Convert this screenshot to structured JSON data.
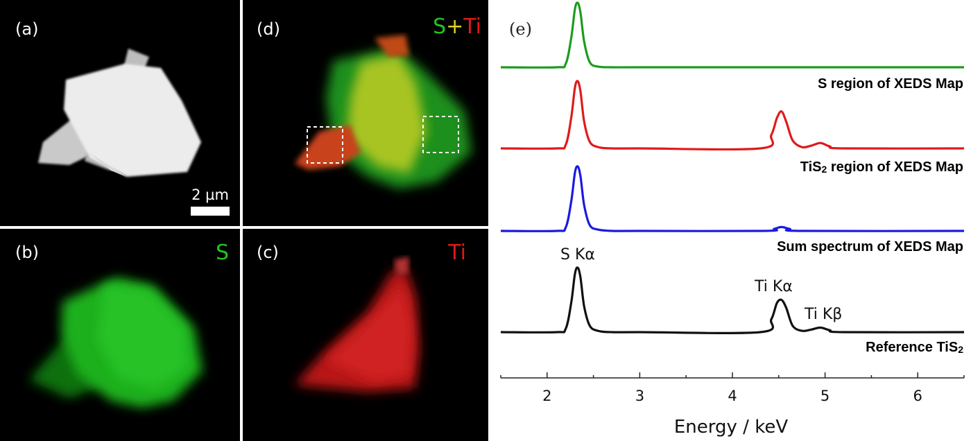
{
  "panels": {
    "a": {
      "letter": "(a)",
      "scale_bar_text": "2 µm"
    },
    "b": {
      "letter": "(b)",
      "element": "S",
      "color": "#22c422"
    },
    "c": {
      "letter": "(c)",
      "element": "Ti",
      "color": "#e01a1a"
    },
    "d": {
      "letter": "(d)",
      "overlay_parts": [
        {
          "text": "S",
          "color": "#22c422"
        },
        {
          "text": "+",
          "color": "#e0d020"
        },
        {
          "text": "Ti",
          "color": "#e01a1a"
        }
      ]
    },
    "e": {
      "letter": "(e)"
    }
  },
  "chart_data": {
    "type": "line",
    "panel": "(e)",
    "xlabel": "Energy / keV",
    "xlim": [
      1.5,
      6.5
    ],
    "x_ticks": [
      2,
      3,
      4,
      5,
      6
    ],
    "y_axis_shown": false,
    "series": [
      {
        "name": "S region of XEDS Map",
        "color": "#1e9b1e",
        "x": [
          1.5,
          2.1,
          2.2,
          2.26,
          2.3,
          2.33,
          2.36,
          2.4,
          2.46,
          2.55,
          2.7,
          3.0,
          4.4,
          4.5,
          4.6,
          5.0,
          6.5
        ],
        "y": [
          0,
          0,
          0.05,
          0.45,
          0.9,
          1.0,
          0.85,
          0.4,
          0.08,
          0.01,
          0,
          0,
          0,
          0,
          0,
          0,
          0
        ]
      },
      {
        "name": "TiS2 region of XEDS Map",
        "color": "#e01a1a",
        "x": [
          1.5,
          2.1,
          2.2,
          2.26,
          2.3,
          2.33,
          2.36,
          2.4,
          2.46,
          2.55,
          2.7,
          3.0,
          4.3,
          4.42,
          4.48,
          4.53,
          4.58,
          4.65,
          4.75,
          4.85,
          4.95,
          5.05,
          5.2,
          6.5
        ],
        "y": [
          0,
          0,
          0.05,
          0.45,
          0.9,
          1.0,
          0.85,
          0.4,
          0.1,
          0.02,
          0,
          0,
          0,
          0.2,
          0.45,
          0.55,
          0.4,
          0.12,
          0.02,
          0.04,
          0.08,
          0.03,
          0,
          0
        ]
      },
      {
        "name": "Sum spectrum of XEDS Map",
        "color": "#1a1ae0",
        "x": [
          1.5,
          2.1,
          2.2,
          2.26,
          2.3,
          2.33,
          2.36,
          2.4,
          2.46,
          2.55,
          2.7,
          3.0,
          4.35,
          4.45,
          4.53,
          4.62,
          4.75,
          6.5
        ],
        "y": [
          0,
          0,
          0.05,
          0.45,
          0.9,
          1.0,
          0.85,
          0.4,
          0.09,
          0.02,
          0,
          0,
          0,
          0.03,
          0.06,
          0.03,
          0,
          0
        ]
      },
      {
        "name": "Reference TiS2",
        "color": "#111111",
        "x": [
          1.5,
          2.1,
          2.2,
          2.26,
          2.3,
          2.33,
          2.36,
          2.4,
          2.46,
          2.55,
          2.7,
          3.0,
          4.3,
          4.42,
          4.48,
          4.53,
          4.58,
          4.65,
          4.75,
          4.85,
          4.95,
          5.05,
          5.2,
          6.5
        ],
        "y": [
          0,
          0,
          0.05,
          0.45,
          0.9,
          1.0,
          0.85,
          0.4,
          0.1,
          0.02,
          0,
          0,
          0,
          0.2,
          0.45,
          0.5,
          0.38,
          0.1,
          0.02,
          0.04,
          0.07,
          0.03,
          0,
          0
        ]
      }
    ],
    "annotations": [
      "S Kα",
      "Ti Kα",
      "Ti Kβ"
    ]
  }
}
